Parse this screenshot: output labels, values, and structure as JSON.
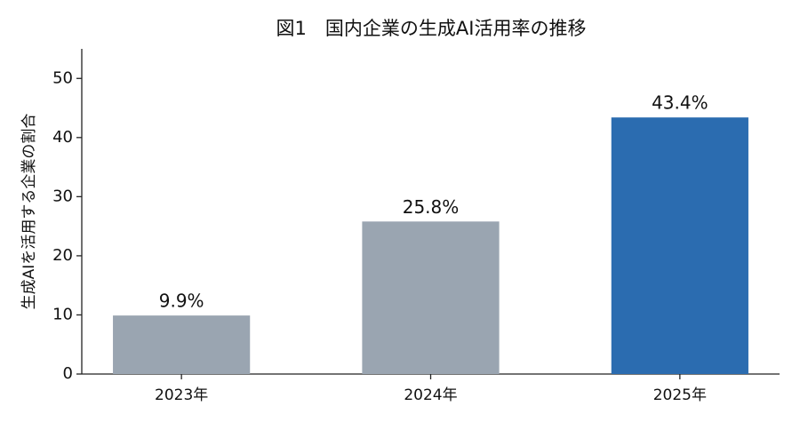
{
  "chart_data": {
    "type": "bar",
    "title": "図1　国内企業の生成AI活用率の推移",
    "y_label": "生成AIを活用する企業の割合",
    "categories": [
      "2023年",
      "2024年",
      "2025年"
    ],
    "values": [
      9.9,
      25.8,
      43.4
    ],
    "value_labels": [
      "9.9%",
      "25.8%",
      "43.4%"
    ],
    "colors": [
      "#9aa5b1",
      "#9aa5b1",
      "#2b6cb0"
    ],
    "ylim": [
      0,
      55
    ],
    "yticks": [
      0,
      10,
      20,
      30,
      40,
      50
    ],
    "grid": false
  }
}
